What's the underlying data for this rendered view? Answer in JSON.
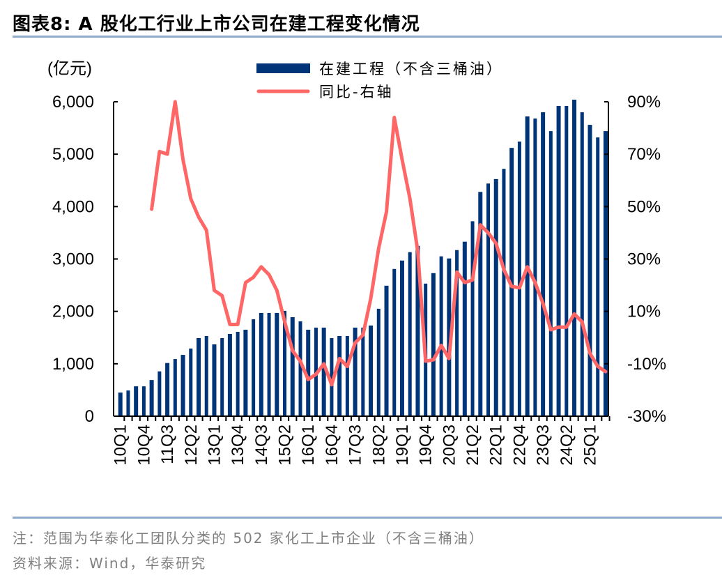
{
  "header": {
    "title": "图表8:   A 股化工行业上市公司在建工程变化情况"
  },
  "footer": {
    "note": "注：范围为华泰化工团队分类的 502 家化工上市企业（不含三桶油）",
    "source": "资料来源：Wind，华泰研究"
  },
  "chart_data": {
    "type": "bar+line",
    "ylabel": "(亿元)",
    "ylim": [
      0,
      6000
    ],
    "y_ticks": [
      "0",
      "1,000",
      "2,000",
      "3,000",
      "4,000",
      "5,000",
      "6,000"
    ],
    "y2lim": [
      -30,
      90
    ],
    "y2_ticks": [
      "-30%",
      "-10%",
      "10%",
      "30%",
      "50%",
      "70%",
      "90%"
    ],
    "legend_position": "top",
    "colors": {
      "bar": "#003478",
      "line": "#ff6666"
    },
    "categories": [
      "10Q1",
      "10Q2",
      "10Q3",
      "10Q4",
      "11Q1",
      "11Q2",
      "11Q3",
      "11Q4",
      "12Q1",
      "12Q2",
      "12Q3",
      "12Q4",
      "13Q1",
      "13Q2",
      "13Q3",
      "13Q4",
      "14Q1",
      "14Q2",
      "14Q3",
      "14Q4",
      "15Q1",
      "15Q2",
      "15Q3",
      "15Q4",
      "16Q1",
      "16Q2",
      "16Q3",
      "16Q4",
      "17Q1",
      "17Q2",
      "17Q3",
      "17Q4",
      "18Q1",
      "18Q2",
      "18Q3",
      "18Q4",
      "19Q1",
      "19Q2",
      "19Q3",
      "19Q4",
      "20Q1",
      "20Q2",
      "20Q3",
      "20Q4",
      "21Q1",
      "21Q2",
      "21Q3",
      "21Q4",
      "22Q1",
      "22Q2",
      "22Q3",
      "22Q4",
      "23Q1",
      "23Q2",
      "23Q3",
      "23Q4",
      "24Q1",
      "24Q2",
      "24Q3",
      "24Q4",
      "25Q1",
      "25Q2",
      "25Q3"
    ],
    "x_tick_labels": [
      "10Q1",
      "10Q4",
      "11Q3",
      "12Q2",
      "13Q1",
      "13Q4",
      "14Q3",
      "15Q2",
      "16Q1",
      "16Q4",
      "17Q3",
      "18Q2",
      "19Q1",
      "19Q4",
      "20Q3",
      "21Q2",
      "22Q1",
      "22Q4",
      "23Q3",
      "24Q2",
      "25Q1"
    ],
    "series": [
      {
        "name": "在建工程（不含三桶油）",
        "type": "bar",
        "axis": "left",
        "values": [
          450,
          490,
          570,
          570,
          690,
          855,
          1015,
          1090,
          1170,
          1290,
          1490,
          1530,
          1370,
          1490,
          1570,
          1610,
          1650,
          1850,
          1970,
          1970,
          1970,
          2010,
          1890,
          1810,
          1650,
          1690,
          1690,
          1490,
          1530,
          1530,
          1690,
          1690,
          1730,
          2050,
          2490,
          2810,
          2970,
          3130,
          3250,
          2530,
          2730,
          3050,
          3010,
          3170,
          3330,
          3720,
          4280,
          4440,
          4525,
          4720,
          5120,
          5240,
          5720,
          5680,
          5800,
          5440,
          5920,
          5920,
          6040,
          5800,
          5560,
          5320,
          5440
        ]
      },
      {
        "name": "同比-右轴",
        "type": "line",
        "axis": "right",
        "unit": "%",
        "values": [
          null,
          null,
          null,
          null,
          49,
          71,
          70,
          90,
          68,
          53,
          46,
          41,
          18,
          16,
          5,
          5,
          21,
          23,
          27,
          24,
          18,
          6,
          -5,
          -9,
          -16,
          -14,
          -10,
          -18,
          -8,
          -11,
          -2,
          1,
          15,
          34,
          48,
          84,
          68,
          53,
          33,
          -9,
          -8.5,
          -3,
          -8,
          25,
          21,
          22,
          43,
          40,
          36,
          26,
          19.5,
          19,
          27,
          21,
          13,
          3,
          4,
          4,
          9,
          6,
          -6,
          -11,
          -13
        ]
      }
    ]
  }
}
